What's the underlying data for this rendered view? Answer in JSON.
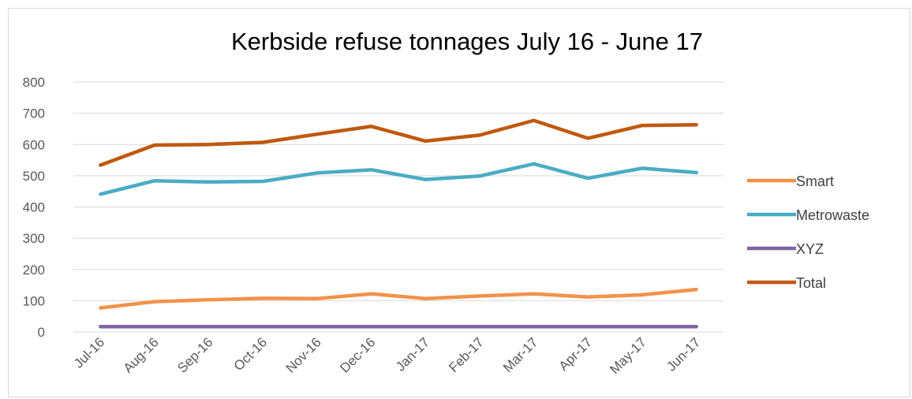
{
  "chart_data": {
    "type": "line",
    "title": "Kerbside refuse tonnages July 16 - June 17",
    "xlabel": "",
    "ylabel": "",
    "categories": [
      "Jul-16",
      "Aug-16",
      "Sep-16",
      "Oct-16",
      "Nov-16",
      "Dec-16",
      "Jan-17",
      "Feb-17",
      "Mar-17",
      "Apr-17",
      "May-17",
      "Jun-17"
    ],
    "ylim": [
      0,
      800
    ],
    "yticks": [
      "0",
      "100",
      "200",
      "300",
      "400",
      "500",
      "600",
      "700",
      "800"
    ],
    "grid": true,
    "legend_position": "right",
    "series": [
      {
        "name": "Smart",
        "color": "#f4914a",
        "values": [
          77,
          97,
          103,
          108,
          107,
          122,
          107,
          115,
          122,
          112,
          119,
          136
        ]
      },
      {
        "name": "Metrowaste",
        "color": "#4babc5",
        "values": [
          441,
          484,
          480,
          482,
          509,
          519,
          488,
          499,
          538,
          492,
          524,
          510
        ]
      },
      {
        "name": "XYZ",
        "color": "#8064a2",
        "values": [
          17,
          17,
          17,
          17,
          17,
          17,
          17,
          17,
          17,
          17,
          17,
          17
        ]
      },
      {
        "name": "Total",
        "color": "#c0580e",
        "values": [
          534,
          598,
          600,
          607,
          633,
          658,
          611,
          630,
          677,
          620,
          661,
          663
        ]
      }
    ]
  }
}
